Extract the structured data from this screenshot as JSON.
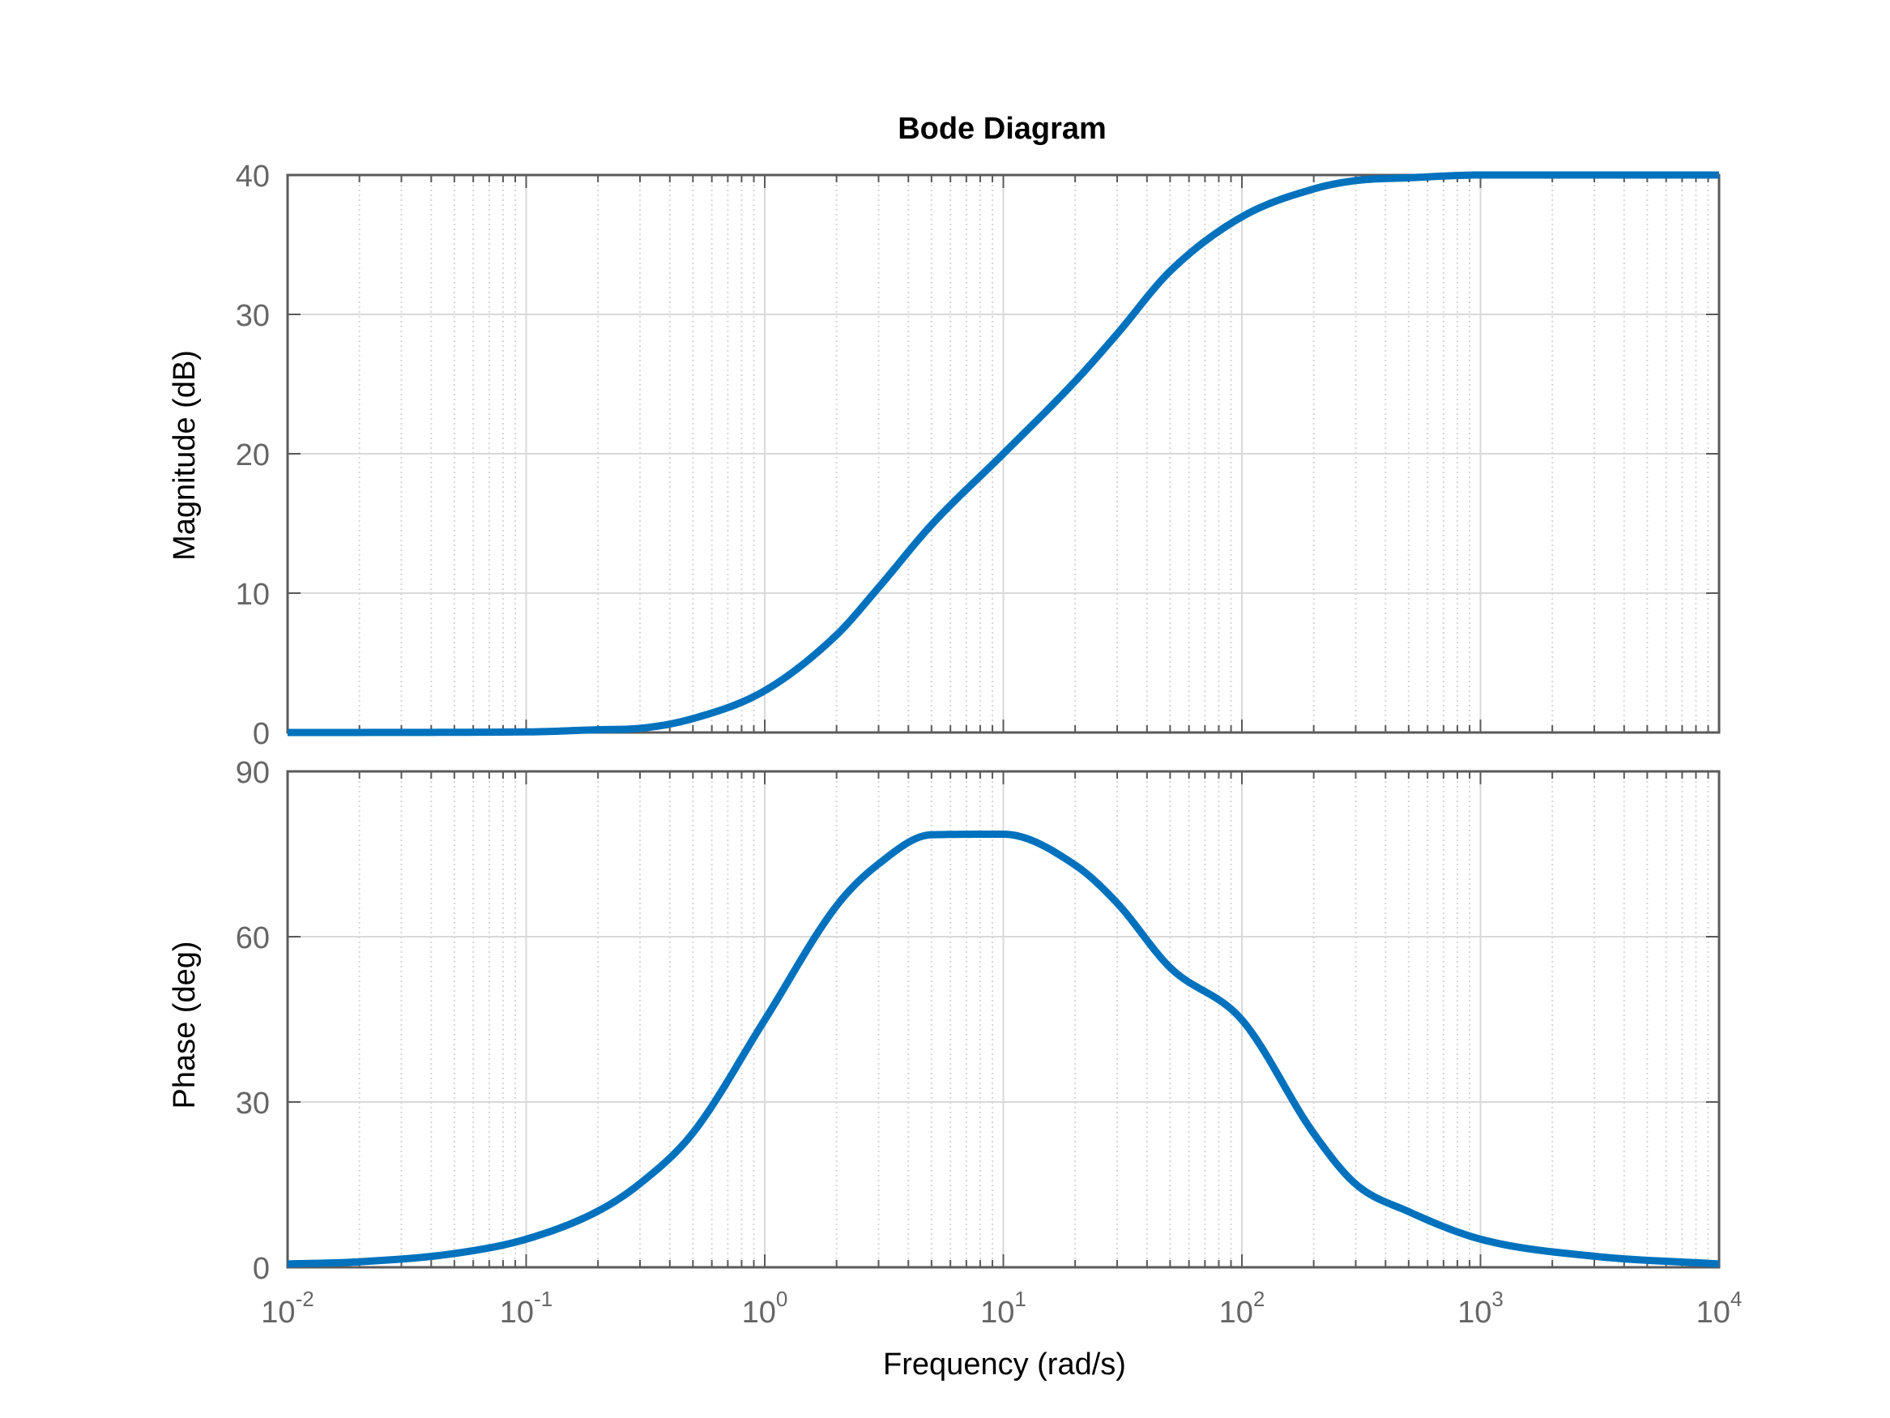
{
  "chart_data": {
    "type": "line",
    "title": "Bode Diagram",
    "xlabel": "Frequency  (rad/s)",
    "x_scale": "log",
    "xlim": [
      0.01,
      10000
    ],
    "x_tick_labels": [
      {
        "base": "10",
        "exp": "-2"
      },
      {
        "base": "10",
        "exp": "-1"
      },
      {
        "base": "10",
        "exp": "0"
      },
      {
        "base": "10",
        "exp": "1"
      },
      {
        "base": "10",
        "exp": "2"
      },
      {
        "base": "10",
        "exp": "3"
      },
      {
        "base": "10",
        "exp": "4"
      }
    ],
    "grid": true,
    "line_color": "#0072BD",
    "panels": [
      {
        "name": "magnitude",
        "ylabel": "Magnitude (dB)",
        "ylim": [
          0,
          40
        ],
        "yticks": [
          "0",
          "10",
          "20",
          "30",
          "40"
        ],
        "x": [
          0.01,
          0.1,
          0.2,
          0.3,
          0.5,
          1,
          2,
          3,
          5,
          10,
          20,
          30,
          50,
          100,
          200,
          300,
          500,
          1000,
          10000
        ],
        "y": [
          0.0,
          0.04,
          0.2,
          0.3,
          1.0,
          3.0,
          7.0,
          10.4,
          14.9,
          20.0,
          25.2,
          28.6,
          33.1,
          37.0,
          39.0,
          39.6,
          39.8,
          40.0,
          40.0
        ]
      },
      {
        "name": "phase",
        "ylabel": "Phase (deg)",
        "ylim": [
          0,
          90
        ],
        "yticks": [
          "0",
          "30",
          "60",
          "90"
        ],
        "x": [
          0.01,
          0.02,
          0.05,
          0.1,
          0.2,
          0.3,
          0.5,
          1,
          2,
          3,
          5,
          10,
          20,
          30,
          50,
          100,
          200,
          300,
          500,
          1000,
          3000,
          10000
        ],
        "y": [
          0.6,
          1.0,
          2.5,
          5.1,
          10.2,
          15.2,
          24.4,
          44.9,
          65.6,
          73.2,
          78.5,
          78.6,
          73.0,
          66.1,
          54.4,
          44.9,
          24.3,
          15.1,
          10.1,
          5.1,
          2.0,
          0.6
        ]
      }
    ]
  }
}
